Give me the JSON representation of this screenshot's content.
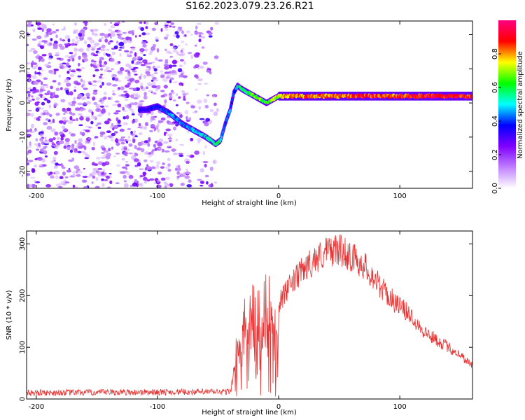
{
  "title": "S162.2023.079.23.26.R21",
  "chart_data": [
    {
      "type": "heatmap",
      "xlabel": "Height of straight line (km)",
      "ylabel": "Frequency (Hz)",
      "xlim": [
        -208,
        160
      ],
      "ylim": [
        -25,
        24
      ],
      "xticks": [
        -200,
        -100,
        0,
        100
      ],
      "yticks": [
        -20,
        -10,
        0,
        10,
        20
      ],
      "colorbar": {
        "label": "Normalized spectral amplitude",
        "range": [
          0,
          1
        ],
        "ticks": [
          0.0,
          0.2,
          0.4,
          0.6,
          0.8
        ],
        "colors": [
          "#ffffff",
          "#c080ff",
          "#8000ff",
          "#0000ff",
          "#00ffff",
          "#00ff00",
          "#ffff00",
          "#ff0000",
          "#ff0080"
        ]
      },
      "ridge": {
        "x": [
          -110,
          -100,
          -90,
          -80,
          -70,
          -60,
          -52,
          -48,
          -44,
          -40,
          -37,
          -34,
          -30,
          -25,
          -20,
          -15,
          -10,
          -5,
          0,
          10,
          20,
          40,
          60,
          80,
          100,
          120,
          140,
          160
        ],
        "y": [
          -2,
          -1,
          -3,
          -6,
          -8,
          -10,
          -12,
          -11,
          -6,
          -2,
          3,
          5,
          4,
          3,
          2,
          1,
          0,
          1,
          2,
          2,
          2,
          2,
          2,
          2,
          2,
          2,
          2,
          2
        ],
        "amplitude": [
          0.25,
          0.3,
          0.35,
          0.35,
          0.4,
          0.4,
          0.5,
          0.45,
          0.3,
          0.35,
          0.3,
          0.4,
          0.5,
          0.55,
          0.6,
          0.6,
          0.55,
          0.6,
          0.7,
          0.75,
          0.8,
          0.75,
          0.8,
          0.85,
          0.8,
          0.9,
          0.9,
          0.85
        ]
      },
      "noise_region_x": [
        -208,
        -60
      ]
    },
    {
      "type": "line",
      "xlabel": "Height of straight line (km)",
      "ylabel": "SNR (10 * v/v)",
      "xlim": [
        -208,
        160
      ],
      "ylim": [
        0,
        325
      ],
      "xticks": [
        -200,
        -100,
        0,
        100
      ],
      "yticks": [
        0,
        100,
        200,
        300
      ],
      "color": "#e83030",
      "envelope": {
        "x": [
          -208,
          -40,
          -36,
          -30,
          -24,
          -18,
          -12,
          -5,
          0,
          10,
          20,
          30,
          40,
          50,
          60,
          70,
          80,
          90,
          100,
          110,
          120,
          130,
          140,
          150,
          160
        ],
        "y": [
          12,
          14,
          80,
          150,
          170,
          180,
          190,
          180,
          185,
          220,
          250,
          270,
          285,
          290,
          275,
          260,
          230,
          200,
          180,
          160,
          130,
          115,
          100,
          85,
          65
        ]
      }
    }
  ]
}
